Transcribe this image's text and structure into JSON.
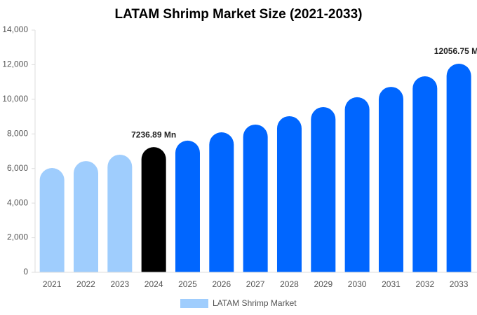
{
  "chart_data": {
    "type": "bar",
    "title": "LATAM Shrimp Market Size (2021-2033)",
    "categories": [
      "2021",
      "2022",
      "2023",
      "2024",
      "2025",
      "2026",
      "2027",
      "2028",
      "2029",
      "2030",
      "2031",
      "2032",
      "2033"
    ],
    "series": [
      {
        "name": "LATAM Shrimp Market",
        "color": "#9fcdfd",
        "colors": [
          "#9fcdfd",
          "#9fcdfd",
          "#9fcdfd",
          "#000000",
          "#0066ff",
          "#0066ff",
          "#0066ff",
          "#0066ff",
          "#0066ff",
          "#0066ff",
          "#0066ff",
          "#0066ff",
          "#0066ff"
        ],
        "values": [
          6030,
          6430,
          6800,
          7236.89,
          7610,
          8090,
          8540,
          9025,
          9550,
          10120,
          10720,
          11330,
          12056.75
        ],
        "value_labels": [
          null,
          null,
          null,
          "7236.89 Mn",
          null,
          null,
          null,
          null,
          null,
          null,
          null,
          null,
          "12056.75 Mn"
        ]
      }
    ],
    "ylim": [
      0,
      14000
    ],
    "yticks": [
      0,
      {
        "value": 2000,
        "label": "2,000"
      },
      {
        "value": 4000,
        "label": "4,000"
      },
      {
        "value": 6000,
        "label": "6,000"
      },
      {
        "value": 8000,
        "label": "8,000"
      },
      {
        "value": 10000,
        "label": "10,000"
      },
      {
        "value": 12000,
        "label": "12,000"
      },
      {
        "value": 14000,
        "label": "14,000"
      }
    ]
  }
}
